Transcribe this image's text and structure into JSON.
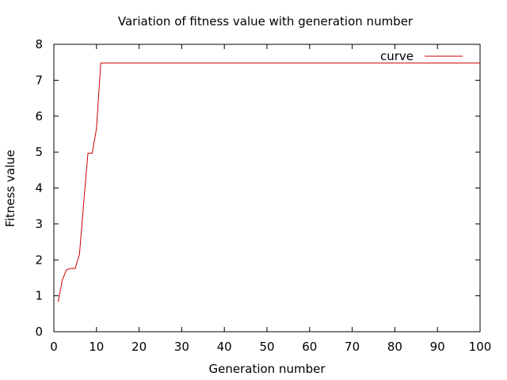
{
  "chart_data": {
    "type": "line",
    "title": "Variation of fitness value with generation number",
    "xlabel": "Generation number",
    "ylabel": "Fitness value",
    "xlim": [
      0,
      100
    ],
    "ylim": [
      0,
      8
    ],
    "xticks": [
      0,
      10,
      20,
      30,
      40,
      50,
      60,
      70,
      80,
      90,
      100
    ],
    "yticks": [
      0,
      1,
      2,
      3,
      4,
      5,
      6,
      7,
      8
    ],
    "grid": false,
    "legend": {
      "placement": "top-right"
    },
    "series": [
      {
        "name": "curve",
        "color": "#cc0000",
        "x": [
          1,
          2,
          3,
          4,
          5,
          6,
          7,
          8,
          9,
          10,
          11,
          20,
          30,
          40,
          50,
          60,
          70,
          80,
          90,
          100
        ],
        "y": [
          0.83,
          1.45,
          1.73,
          1.76,
          1.76,
          2.15,
          3.6,
          4.97,
          4.97,
          5.65,
          7.48,
          7.48,
          7.48,
          7.48,
          7.48,
          7.48,
          7.48,
          7.48,
          7.48,
          7.48
        ]
      }
    ]
  }
}
